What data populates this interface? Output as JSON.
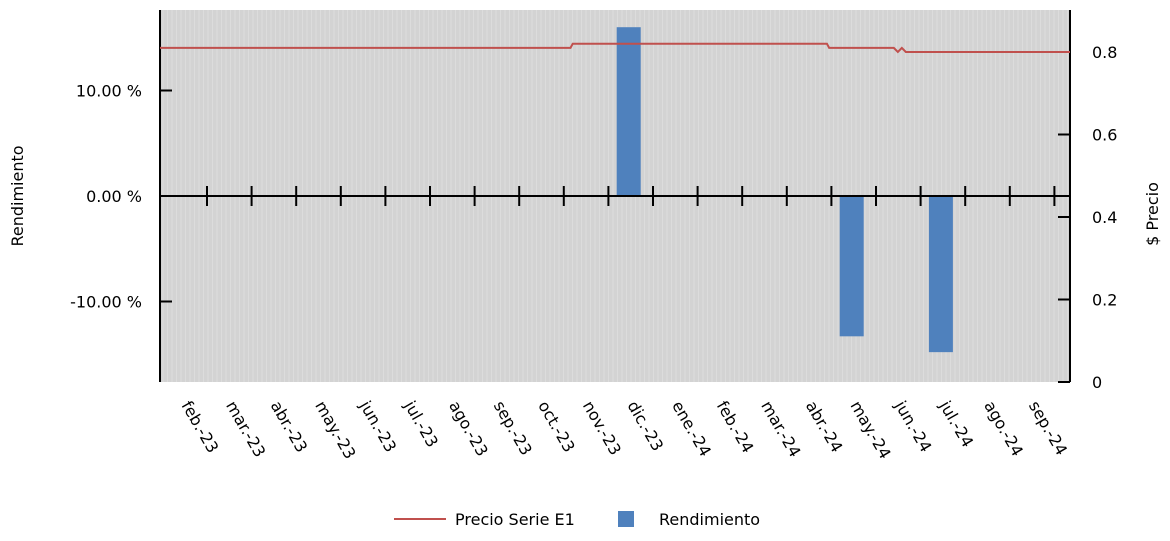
{
  "chart_data": {
    "type": "bar",
    "x": [
      "feb.-23",
      "mar.-23",
      "abr.-23",
      "may.-23",
      "jun.-23",
      "jul.-23",
      "ago.-23",
      "sep.-23",
      "oct.-23",
      "nov.-23",
      "dic.-23",
      "ene.-24",
      "feb.-24",
      "mar.-24",
      "abr.-24",
      "may.-24",
      "jun.-24",
      "jul.-24",
      "ago.-24",
      "sep.-24"
    ],
    "y_left": {
      "label": "Rendimiento",
      "range": [
        -17.5,
        17.5
      ],
      "ticks": [
        10,
        0,
        -10
      ],
      "tick_labels": [
        "10.00 %",
        "0.00 %",
        "-10.00 %"
      ]
    },
    "y_right": {
      "label": "$ Precio",
      "range": [
        0,
        0.9
      ],
      "ticks": [
        0.8,
        0.6,
        0.4,
        0.2,
        0
      ],
      "tick_labels": [
        "0.8",
        "0.6",
        "0.4",
        "0.2",
        "0"
      ]
    },
    "series": [
      {
        "name": "Precio Serie E1",
        "type": "line",
        "axis": "right",
        "color": "#c0504d",
        "x": [
          "feb.-23",
          "oct.-23",
          "oct.-23",
          "mar.-24",
          "mar.-24",
          "may.-24",
          "jun.-24",
          "jun.-24",
          "sep.-24"
        ],
        "values": [
          0.81,
          0.81,
          0.82,
          0.82,
          0.81,
          0.81,
          0.8,
          0.8,
          0.8
        ]
      },
      {
        "name": "Rendimiento",
        "type": "bar",
        "axis": "left",
        "color": "#4f81bd",
        "bars": [
          {
            "x": "nov.-23",
            "value": 16.0
          },
          {
            "x": "abr.-24",
            "value": -13.3
          },
          {
            "x": "jun.-24",
            "value": -14.8
          }
        ]
      }
    ],
    "legend": {
      "placement": "bottom",
      "items": [
        "Precio Serie E1",
        "Rendimiento"
      ]
    },
    "plot_background": "#d3d3d3",
    "grid": true
  }
}
